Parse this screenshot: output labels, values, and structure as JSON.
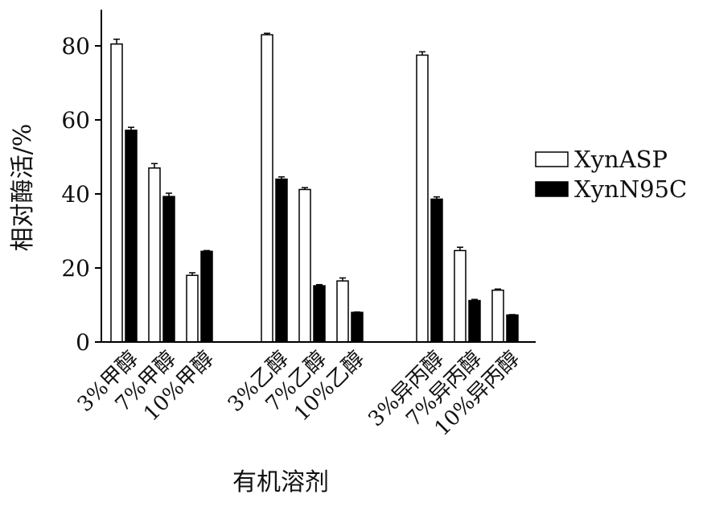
{
  "chart_data": {
    "type": "bar",
    "categories": [
      "3%甲醇",
      "7%甲醇",
      "10%甲醇",
      "3%乙醇",
      "7%乙醇",
      "10%乙醇",
      "3%异丙醇",
      "7%异丙醇",
      "10%异丙醇"
    ],
    "groups": [
      [
        0,
        1,
        2
      ],
      [
        3,
        4,
        5
      ],
      [
        6,
        7,
        8
      ]
    ],
    "series": [
      {
        "name": "XynASP",
        "color": "#ffffff",
        "values": [
          80.5,
          47,
          18,
          83,
          41.2,
          16.5,
          77.5,
          24.7,
          14
        ],
        "errors": [
          1.3,
          1.2,
          0.7,
          0.4,
          0.5,
          0.8,
          0.9,
          0.9,
          0.3
        ]
      },
      {
        "name": "XynN95C",
        "color": "#000000",
        "values": [
          57.2,
          39.3,
          24.5,
          44,
          15.2,
          8,
          38.6,
          11.2,
          7.3
        ],
        "errors": [
          0.8,
          0.9,
          0.2,
          0.6,
          0.3,
          0.1,
          0.6,
          0.3,
          0.1
        ]
      }
    ],
    "title": "",
    "xlabel": "有机溶剂",
    "ylabel": "相对酶活/%",
    "ylim": [
      0,
      90
    ],
    "yticks": [
      0,
      20,
      40,
      60,
      80
    ],
    "grid": false,
    "legend_position": "right"
  }
}
